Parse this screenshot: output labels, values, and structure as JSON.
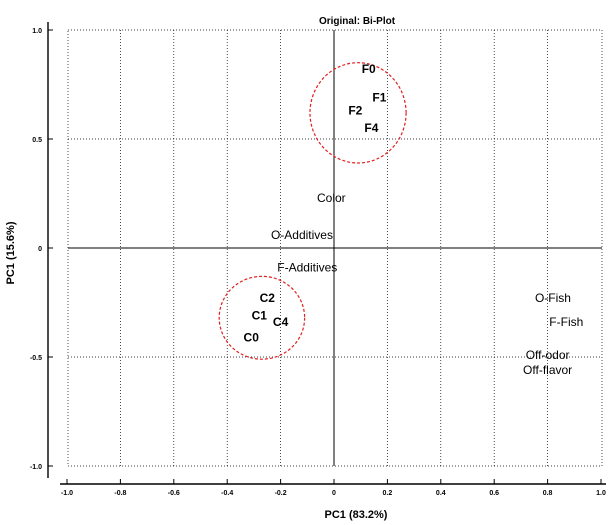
{
  "chart_data": {
    "type": "scatter",
    "title": "Original: Bi-Plot",
    "xlabel": "PC1 (83.2%)",
    "ylabel": "PC1 (15.6%)",
    "xlim": [
      -1.0,
      1.0
    ],
    "ylim": [
      -1.0,
      1.0
    ],
    "x_ticks": [
      -1.0,
      -0.8,
      -0.6,
      -0.4,
      -0.2,
      0,
      0.2,
      0.4,
      0.6,
      0.8,
      1.0
    ],
    "x_tick_labels": [
      "-1.0",
      "-0.8",
      "-0.6",
      "-0.4",
      "-0.2",
      "0",
      "0.2",
      "0.4",
      "0.6",
      "0.8",
      "1.0"
    ],
    "y_ticks": [
      1.0,
      0.5,
      0,
      -0.5,
      -1.0
    ],
    "y_tick_labels": [
      "1.0",
      "0.5",
      "0",
      "-0.5",
      "-1.0"
    ],
    "grid": true,
    "observations": [
      {
        "label": "F0",
        "x": 0.13,
        "y": 0.82
      },
      {
        "label": "F1",
        "x": 0.17,
        "y": 0.69
      },
      {
        "label": "F2",
        "x": 0.08,
        "y": 0.63
      },
      {
        "label": "F4",
        "x": 0.14,
        "y": 0.55
      },
      {
        "label": "C2",
        "x": -0.25,
        "y": -0.23
      },
      {
        "label": "C1",
        "x": -0.28,
        "y": -0.31
      },
      {
        "label": "C4",
        "x": -0.2,
        "y": -0.34
      },
      {
        "label": "C0",
        "x": -0.31,
        "y": -0.41
      }
    ],
    "variables": [
      {
        "label": "Color",
        "x": -0.01,
        "y": 0.23
      },
      {
        "label": "O-Additives",
        "x": -0.12,
        "y": 0.06
      },
      {
        "label": "F-Additives",
        "x": -0.1,
        "y": -0.09
      },
      {
        "label": "O-Fish",
        "x": 0.82,
        "y": -0.23
      },
      {
        "label": "F-Fish",
        "x": 0.87,
        "y": -0.34
      },
      {
        "label": "Off-odor",
        "x": 0.8,
        "y": -0.49
      },
      {
        "label": "Off-flavor",
        "x": 0.8,
        "y": -0.56
      }
    ],
    "clusters": [
      {
        "cx": 0.09,
        "cy": 0.62,
        "rx": 0.18,
        "ry": 0.23
      },
      {
        "cx": -0.27,
        "cy": -0.32,
        "rx": 0.16,
        "ry": 0.19
      }
    ]
  }
}
